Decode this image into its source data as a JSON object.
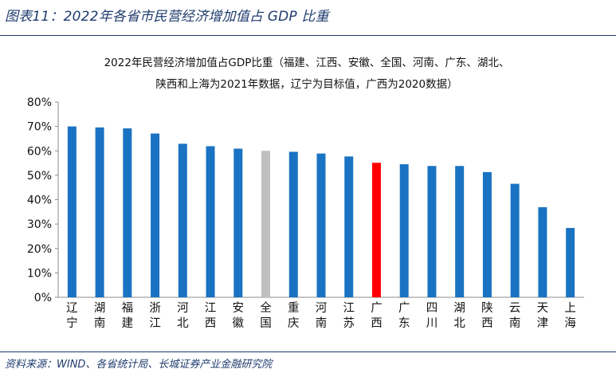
{
  "figure": {
    "title": "图表11：2022年各省市民营经济增加值占 GDP 比重",
    "source": "资料来源：WIND、各省统计局、长城证券产业金融研究院"
  },
  "chart_data": {
    "type": "bar",
    "title_lines": [
      "2022年民营经济增加值占GDP比重（福建、江西、安徽、全国、河南、广东、湖北、",
      "陕西和上海为2021年数据，辽宁为目标值，广西为2020数据）"
    ],
    "categories": [
      "辽宁",
      "湖南",
      "福建",
      "浙江",
      "河北",
      "江西",
      "安徽",
      "全国",
      "重庆",
      "河南",
      "江苏",
      "广西",
      "广东",
      "四川",
      "湖北",
      "陕西",
      "云南",
      "天津",
      "上海"
    ],
    "values": [
      70.0,
      69.6,
      69.2,
      67.1,
      62.9,
      61.9,
      60.9,
      60.0,
      59.6,
      58.9,
      57.7,
      55.1,
      54.5,
      53.8,
      53.8,
      51.3,
      46.5,
      36.9,
      28.4
    ],
    "colors": {
      "default": "#1a73c2",
      "highlight_national": "#bfbfbf",
      "highlight_guangxi": "#ff0000"
    },
    "highlights": {
      "全国": "highlight_national",
      "广西": "highlight_guangxi"
    },
    "ylim": [
      0,
      80
    ],
    "yticks": [
      0,
      10,
      20,
      30,
      40,
      50,
      60,
      70,
      80
    ],
    "ytick_labels": [
      "0%",
      "10%",
      "20%",
      "30%",
      "40%",
      "50%",
      "60%",
      "70%",
      "80%"
    ],
    "xlabel": "",
    "ylabel": "",
    "grid": false
  }
}
